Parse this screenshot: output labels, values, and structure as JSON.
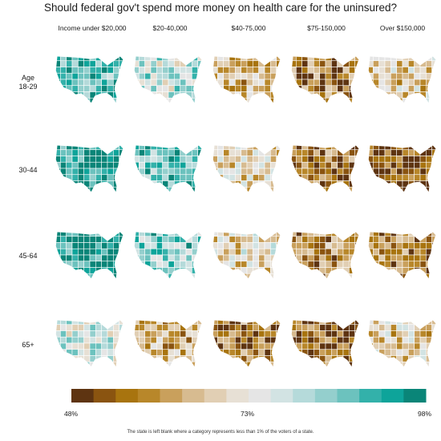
{
  "title": "Should federal gov't spend more money on health care for the uninsured?",
  "income_groups": [
    "Income under $20,000",
    "$20-40,000",
    "$40-75,000",
    "$75-150,000",
    "Over $150,000"
  ],
  "age_groups": [
    {
      "line1": "Age",
      "line2": "18-29"
    },
    {
      "line1": "",
      "line2": "30-44"
    },
    {
      "line1": "",
      "line2": "45-64"
    },
    {
      "line1": "",
      "line2": "65+"
    }
  ],
  "legend": {
    "min_label": "48%",
    "mid_label": "73%",
    "max_label": "98%",
    "colors": [
      "#5e3411",
      "#8a5410",
      "#a8740f",
      "#b8872a",
      "#c9a05c",
      "#d7bb90",
      "#e1cfb4",
      "#e7e0d5",
      "#e5e5e5",
      "#d2e3e3",
      "#b5dada",
      "#94cfcd",
      "#6cc2be",
      "#33b1aa",
      "#0ea49a",
      "#0a8578"
    ]
  },
  "footnote": "The state is left blank where a category represents less than 1% of the voters of a state.",
  "chart_data": {
    "type": "heatmap",
    "title": "Should federal gov't spend more money on health care for the uninsured?",
    "rows": [
      "Age 18-29",
      "30-44",
      "45-64",
      "65+"
    ],
    "columns": [
      "Income under $20,000",
      "$20-40,000",
      "$40-75,000",
      "$75-150,000",
      "Over $150,000"
    ],
    "scale_min": 48,
    "scale_mid": 73,
    "scale_max": 98,
    "approx_typical_support_pct": [
      [
        90,
        80,
        65,
        58,
        68
      ],
      [
        95,
        88,
        68,
        56,
        52
      ],
      [
        95,
        85,
        70,
        60,
        58
      ],
      [
        78,
        64,
        56,
        54,
        68
      ]
    ]
  }
}
